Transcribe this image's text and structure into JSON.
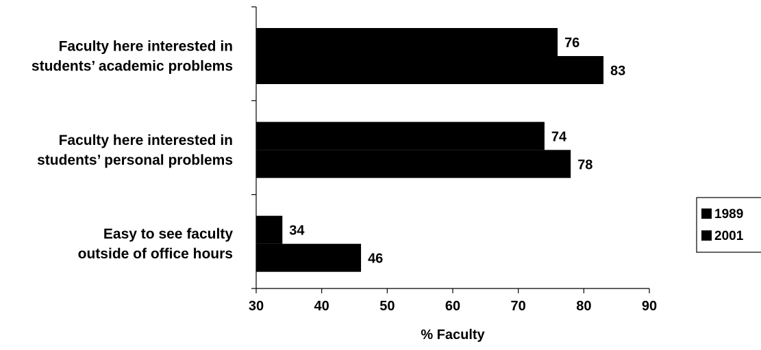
{
  "chart_data": {
    "type": "bar",
    "orientation": "horizontal",
    "categories": [
      [
        "Faculty here interested in",
        "students’ academic problems"
      ],
      [
        "Faculty here interested in",
        "students’ personal problems"
      ],
      [
        "Easy to see faculty",
        "outside of office hours"
      ]
    ],
    "series": [
      {
        "name": "1989",
        "values": [
          76,
          74,
          34
        ]
      },
      {
        "name": "2001",
        "values": [
          83,
          78,
          46
        ]
      }
    ],
    "xlabel": "% Faculty",
    "ylabel": "",
    "xlim": [
      30,
      90
    ],
    "xticks": [
      30,
      40,
      50,
      60,
      70,
      80,
      90
    ],
    "grid": false,
    "legend_position": "right",
    "bar_color": "#000000"
  }
}
